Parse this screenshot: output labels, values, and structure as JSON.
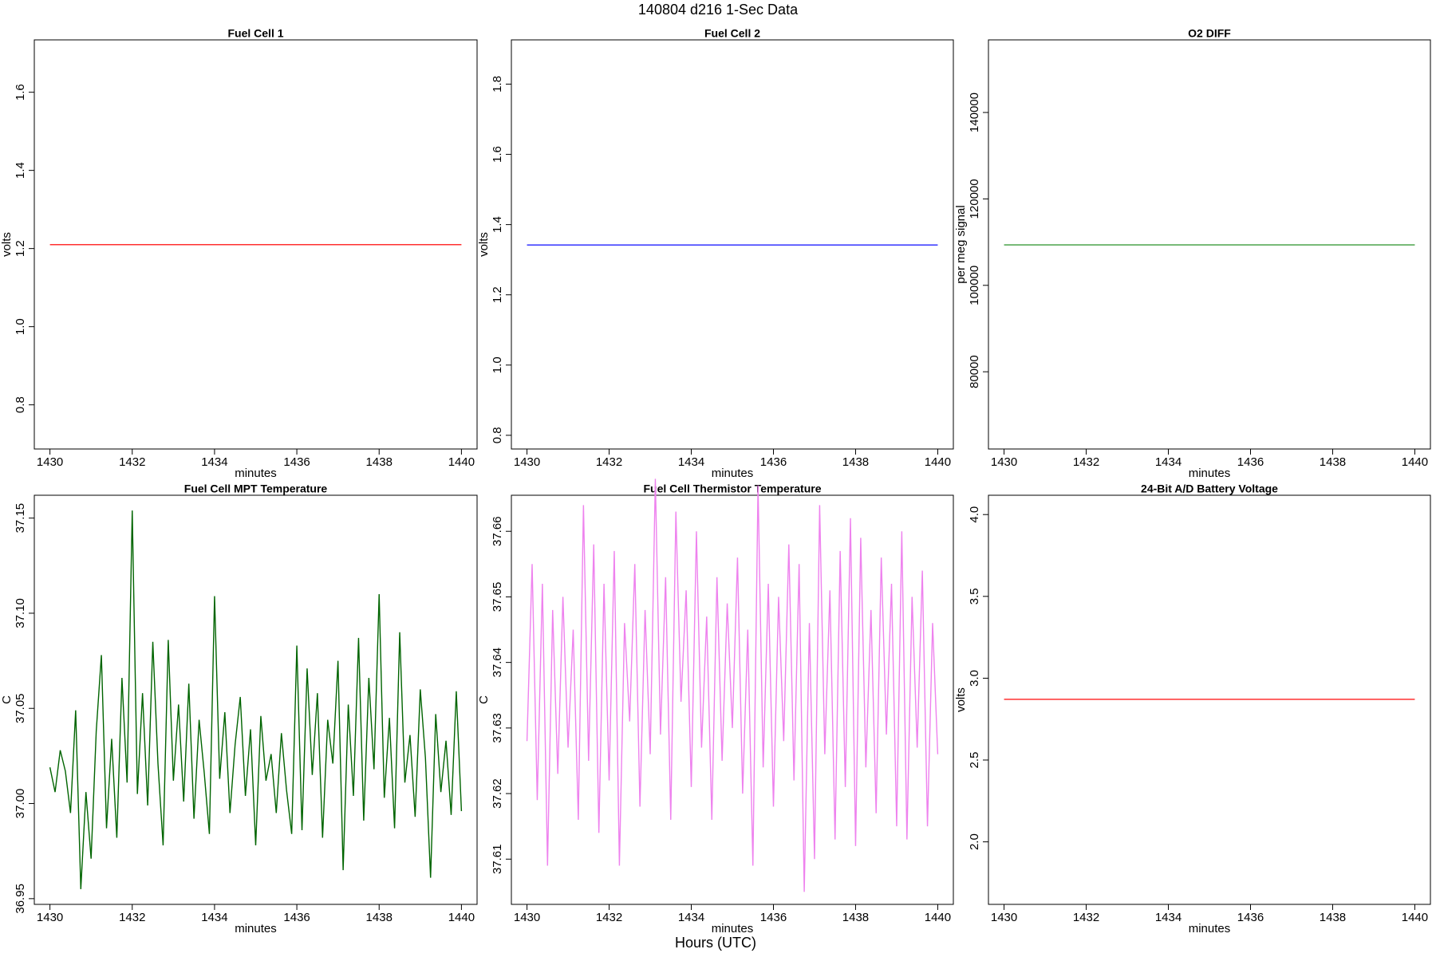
{
  "title": "140804   d216   1-Sec Data",
  "xlabel": "Hours (UTC)",
  "chart_data": [
    {
      "type": "line",
      "title": "Fuel Cell 1",
      "xlabel": "minutes",
      "ylabel": "volts",
      "color": "#ff3030",
      "x": [
        1430,
        1440
      ],
      "values": [
        1.21,
        1.21
      ],
      "xlim": [
        1429.62,
        1440.38
      ],
      "xticks": [
        1430,
        1432,
        1434,
        1436,
        1438,
        1440
      ],
      "ylim": [
        0.687,
        1.734
      ],
      "yticks": [
        0.8,
        {
          "value": 1,
          "label": "1.0"
        },
        1.2,
        1.4,
        1.6
      ]
    },
    {
      "type": "line",
      "title": "Fuel Cell 2",
      "xlabel": "minutes",
      "ylabel": "volts",
      "color": "#2020ff",
      "x": [
        1430,
        1440
      ],
      "values": [
        1.342,
        1.342
      ],
      "xlim": [
        1429.62,
        1440.38
      ],
      "xticks": [
        1430,
        1432,
        1434,
        1436,
        1438,
        1440
      ],
      "ylim": [
        0.761,
        1.926
      ],
      "yticks": [
        0.8,
        {
          "value": 1,
          "label": "1.0"
        },
        1.2,
        1.4,
        1.6,
        1.8
      ]
    },
    {
      "type": "line",
      "title": "O2 DIFF",
      "xlabel": "minutes",
      "ylabel": "per meg signal",
      "color": "#3a9a3a",
      "x": [
        1430,
        1440
      ],
      "values": [
        109360,
        109360
      ],
      "xlim": [
        1429.62,
        1440.38
      ],
      "xticks": [
        1430,
        1432,
        1434,
        1436,
        1438,
        1440
      ],
      "ylim": [
        62130,
        156800
      ],
      "yticks": [
        80000,
        100000,
        120000,
        140000
      ]
    },
    {
      "type": "line",
      "title": "Fuel Cell MPT Temperature",
      "xlabel": "minutes",
      "ylabel": "C",
      "color": "#006400",
      "x": [
        1430,
        1430.125,
        1430.25,
        1430.375,
        1430.5,
        1430.625,
        1430.75,
        1430.875,
        1431,
        1431.125,
        1431.25,
        1431.375,
        1431.5,
        1431.625,
        1431.75,
        1431.875,
        1432,
        1432.125,
        1432.25,
        1432.375,
        1432.5,
        1432.625,
        1432.75,
        1432.875,
        1433,
        1433.125,
        1433.25,
        1433.375,
        1433.5,
        1433.625,
        1433.75,
        1433.875,
        1434,
        1434.125,
        1434.25,
        1434.375,
        1434.5,
        1434.625,
        1434.75,
        1434.875,
        1435,
        1435.125,
        1435.25,
        1435.375,
        1435.5,
        1435.625,
        1435.75,
        1435.875,
        1436,
        1436.125,
        1436.25,
        1436.375,
        1436.5,
        1436.625,
        1436.75,
        1436.875,
        1437,
        1437.125,
        1437.25,
        1437.375,
        1437.5,
        1437.625,
        1437.75,
        1437.875,
        1438,
        1438.125,
        1438.25,
        1438.375,
        1438.5,
        1438.625,
        1438.75,
        1438.875,
        1439,
        1439.125,
        1439.25,
        1439.375,
        1439.5,
        1439.625,
        1439.75,
        1439.875,
        1440
      ],
      "values": [
        37.019,
        37.006,
        37.028,
        37.017,
        36.995,
        37.049,
        36.955,
        37.006,
        36.971,
        37.038,
        37.078,
        36.987,
        37.034,
        36.982,
        37.066,
        37.011,
        37.154,
        37.005,
        37.058,
        36.999,
        37.085,
        37.021,
        36.978,
        37.086,
        37.012,
        37.052,
        37.001,
        37.063,
        36.992,
        37.044,
        37.016,
        36.984,
        37.109,
        37.013,
        37.048,
        36.995,
        37.031,
        37.056,
        37.004,
        37.039,
        36.978,
        37.046,
        37.012,
        37.026,
        36.995,
        37.037,
        37.007,
        36.984,
        37.083,
        36.986,
        37.071,
        37.015,
        37.058,
        36.982,
        37.044,
        37.021,
        37.075,
        36.965,
        37.052,
        37.004,
        37.087,
        36.991,
        37.066,
        37.018,
        37.11,
        37.003,
        37.045,
        36.987,
        37.09,
        37.011,
        37.036,
        36.993,
        37.06,
        37.024,
        36.961,
        37.047,
        37.006,
        37.033,
        36.994,
        37.059,
        36.996
      ],
      "xlim": [
        1429.62,
        1440.38
      ],
      "xticks": [
        1430,
        1432,
        1434,
        1436,
        1438,
        1440
      ],
      "ylim": [
        36.947,
        37.162
      ],
      "yticks": [
        36.95,
        {
          "value": 37,
          "label": "37.00"
        },
        37.05,
        {
          "value": 37.1,
          "label": "37.10"
        },
        37.15
      ]
    },
    {
      "type": "line",
      "title": "Fuel Cell Thermistor Temperature",
      "xlabel": "minutes",
      "ylabel": "C",
      "color": "#ee82ee",
      "x": [
        1430,
        1430.125,
        1430.25,
        1430.375,
        1430.5,
        1430.625,
        1430.75,
        1430.875,
        1431,
        1431.125,
        1431.25,
        1431.375,
        1431.5,
        1431.625,
        1431.75,
        1431.875,
        1432,
        1432.125,
        1432.25,
        1432.375,
        1432.5,
        1432.625,
        1432.75,
        1432.875,
        1433,
        1433.125,
        1433.25,
        1433.375,
        1433.5,
        1433.625,
        1433.75,
        1433.875,
        1434,
        1434.125,
        1434.25,
        1434.375,
        1434.5,
        1434.625,
        1434.75,
        1434.875,
        1435,
        1435.125,
        1435.25,
        1435.375,
        1435.5,
        1435.625,
        1435.75,
        1435.875,
        1436,
        1436.125,
        1436.25,
        1436.375,
        1436.5,
        1436.625,
        1436.75,
        1436.875,
        1437,
        1437.125,
        1437.25,
        1437.375,
        1437.5,
        1437.625,
        1437.75,
        1437.875,
        1438,
        1438.125,
        1438.25,
        1438.375,
        1438.5,
        1438.625,
        1438.75,
        1438.875,
        1439,
        1439.125,
        1439.25,
        1439.375,
        1439.5,
        1439.625,
        1439.75,
        1439.875,
        1440
      ],
      "values": [
        37.628,
        37.655,
        37.619,
        37.652,
        37.609,
        37.648,
        37.623,
        37.65,
        37.627,
        37.645,
        37.616,
        37.664,
        37.625,
        37.658,
        37.614,
        37.652,
        37.622,
        37.657,
        37.609,
        37.646,
        37.631,
        37.655,
        37.618,
        37.648,
        37.626,
        37.668,
        37.629,
        37.653,
        37.616,
        37.663,
        37.634,
        37.651,
        37.621,
        37.66,
        37.627,
        37.647,
        37.616,
        37.653,
        37.625,
        37.649,
        37.63,
        37.656,
        37.62,
        37.645,
        37.609,
        37.667,
        37.624,
        37.652,
        37.618,
        37.65,
        37.628,
        37.658,
        37.622,
        37.655,
        37.605,
        37.646,
        37.61,
        37.664,
        37.626,
        37.651,
        37.613,
        37.657,
        37.621,
        37.662,
        37.612,
        37.659,
        37.624,
        37.648,
        37.617,
        37.656,
        37.629,
        37.652,
        37.615,
        37.66,
        37.613,
        37.65,
        37.627,
        37.654,
        37.615,
        37.646,
        37.626
      ],
      "xlim": [
        1429.62,
        1440.38
      ],
      "xticks": [
        1430,
        1432,
        1434,
        1436,
        1438,
        1440
      ],
      "ylim": [
        37.6031,
        37.6655
      ],
      "yticks": [
        37.61,
        37.62,
        37.63,
        37.64,
        37.65,
        37.66
      ]
    },
    {
      "type": "line",
      "title": "24-Bit A/D Battery Voltage",
      "xlabel": "minutes",
      "ylabel": "volts",
      "color": "#ff3030",
      "x": [
        1430,
        1440
      ],
      "values": [
        2.871,
        2.871
      ],
      "xlim": [
        1429.62,
        1440.38
      ],
      "xticks": [
        1430,
        1432,
        1434,
        1436,
        1438,
        1440
      ],
      "ylim": [
        1.618,
        4.118
      ],
      "yticks": [
        {
          "value": 2,
          "label": "2.0"
        },
        2.5,
        {
          "value": 3,
          "label": "3.0"
        },
        3.5,
        {
          "value": 4,
          "label": "4.0"
        }
      ]
    }
  ]
}
